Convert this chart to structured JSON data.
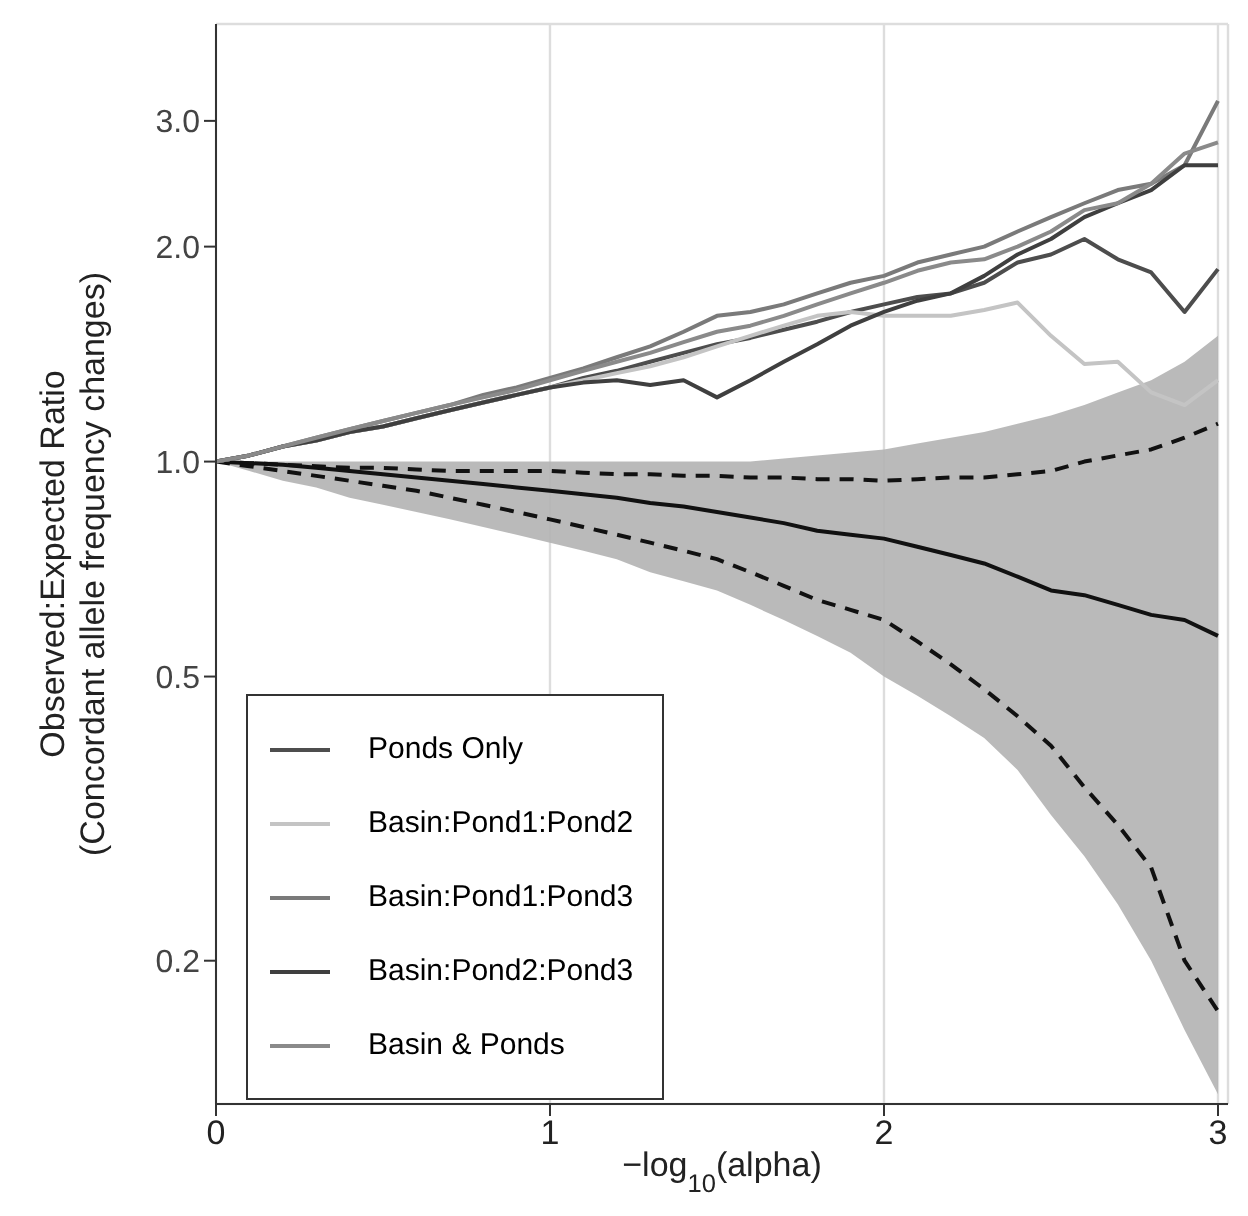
{
  "chart_data": {
    "type": "line",
    "xlabel": "−log$_{10}$(alpha)",
    "ylabel": "Observed:Expected Ratio\n(Concordant allele frequency changes)",
    "log": "y",
    "grid": true,
    "legend": "bottom left",
    "xlim": [
      0,
      3.03
    ],
    "xticks": [
      0,
      1,
      2,
      3
    ],
    "ylim": [
      0.126,
      4.1
    ],
    "yticks": [
      {
        "value": 0.2,
        "label": "0.2"
      },
      {
        "value": 0.5,
        "label": "0.5"
      },
      {
        "value": 1,
        "label": "1.0"
      },
      {
        "value": 2,
        "label": "2.0"
      },
      {
        "value": 3,
        "label": "3.0"
      }
    ],
    "x": [
      0,
      0.1,
      0.2,
      0.3,
      0.4,
      0.5,
      0.6,
      0.7,
      0.8,
      0.9,
      1.0,
      1.1,
      1.2,
      1.3,
      1.4,
      1.5,
      1.6,
      1.7,
      1.8,
      1.9,
      2.0,
      2.1,
      2.2,
      2.3,
      2.4,
      2.5,
      2.6,
      2.7,
      2.8,
      2.9,
      3.0
    ],
    "series": [
      {
        "color": "#111111",
        "values": [
          1.0,
          0.995,
          0.99,
          0.98,
          0.97,
          0.96,
          0.95,
          0.94,
          0.93,
          0.92,
          0.91,
          0.9,
          0.89,
          0.875,
          0.865,
          0.85,
          0.835,
          0.82,
          0.8,
          0.79,
          0.78,
          0.76,
          0.74,
          0.72,
          0.69,
          0.66,
          0.65,
          0.63,
          0.61,
          0.6,
          0.57
        ],
        "lower": [
          1.0,
          0.97,
          0.94,
          0.92,
          0.89,
          0.87,
          0.85,
          0.83,
          0.81,
          0.79,
          0.77,
          0.75,
          0.73,
          0.7,
          0.68,
          0.66,
          0.63,
          0.6,
          0.57,
          0.54,
          0.5,
          0.47,
          0.44,
          0.41,
          0.37,
          0.32,
          0.28,
          0.24,
          0.2,
          0.16,
          0.13
        ],
        "upper": [
          1.0,
          1.0,
          1.0,
          1.0,
          1.0,
          1.0,
          1.0,
          1.0,
          1.0,
          1.0,
          1.0,
          1.0,
          1.0,
          1.0,
          1.0,
          1.0,
          1.0,
          1.01,
          1.02,
          1.03,
          1.04,
          1.06,
          1.08,
          1.1,
          1.13,
          1.16,
          1.2,
          1.25,
          1.3,
          1.38,
          1.5
        ]
      },
      {
        "color": "#111111",
        "line_style": "dashed",
        "values": [
          1.0,
          0.995,
          0.99,
          0.985,
          0.98,
          0.98,
          0.975,
          0.97,
          0.97,
          0.97,
          0.97,
          0.965,
          0.96,
          0.96,
          0.955,
          0.955,
          0.95,
          0.95,
          0.945,
          0.945,
          0.94,
          0.945,
          0.95,
          0.95,
          0.96,
          0.97,
          1.0,
          1.02,
          1.04,
          1.08,
          1.13
        ]
      },
      {
        "color": "#111111",
        "line_style": "dashed",
        "values": [
          1.0,
          0.985,
          0.97,
          0.955,
          0.94,
          0.925,
          0.91,
          0.89,
          0.87,
          0.85,
          0.83,
          0.81,
          0.79,
          0.77,
          0.75,
          0.73,
          0.7,
          0.67,
          0.64,
          0.62,
          0.6,
          0.56,
          0.52,
          0.48,
          0.44,
          0.4,
          0.35,
          0.31,
          0.27,
          0.2,
          0.17
        ]
      },
      {
        "name": "Ponds Only",
        "color": "#4d4d4d",
        "values": [
          1.0,
          1.02,
          1.05,
          1.07,
          1.1,
          1.12,
          1.15,
          1.18,
          1.21,
          1.24,
          1.27,
          1.31,
          1.34,
          1.38,
          1.42,
          1.46,
          1.49,
          1.53,
          1.57,
          1.62,
          1.66,
          1.7,
          1.72,
          1.78,
          1.9,
          1.95,
          2.05,
          1.92,
          1.84,
          1.62,
          1.86
        ]
      },
      {
        "name": "Basin:Pond1:Pond2",
        "color": "#c4c4c4",
        "values": [
          1.0,
          1.02,
          1.05,
          1.07,
          1.1,
          1.12,
          1.15,
          1.18,
          1.21,
          1.24,
          1.27,
          1.3,
          1.33,
          1.36,
          1.4,
          1.45,
          1.5,
          1.55,
          1.6,
          1.62,
          1.6,
          1.6,
          1.6,
          1.63,
          1.67,
          1.5,
          1.37,
          1.38,
          1.25,
          1.2,
          1.3
        ]
      },
      {
        "name": "Basin:Pond1:Pond3",
        "color": "#7a7a7a",
        "values": [
          1.0,
          1.02,
          1.05,
          1.08,
          1.11,
          1.14,
          1.17,
          1.2,
          1.24,
          1.27,
          1.31,
          1.35,
          1.4,
          1.45,
          1.52,
          1.6,
          1.62,
          1.66,
          1.72,
          1.78,
          1.82,
          1.9,
          1.95,
          2.0,
          2.1,
          2.2,
          2.3,
          2.4,
          2.45,
          2.6,
          3.2
        ]
      },
      {
        "name": "Basin:Pond2:Pond3",
        "color": "#3f3f3f",
        "values": [
          1.0,
          1.02,
          1.05,
          1.07,
          1.1,
          1.12,
          1.15,
          1.18,
          1.21,
          1.24,
          1.27,
          1.29,
          1.3,
          1.28,
          1.3,
          1.23,
          1.3,
          1.38,
          1.46,
          1.55,
          1.62,
          1.68,
          1.72,
          1.82,
          1.95,
          2.05,
          2.2,
          2.3,
          2.4,
          2.6,
          2.6
        ]
      },
      {
        "name": "Basin & Ponds",
        "color": "#8a8a8a",
        "values": [
          1.0,
          1.02,
          1.05,
          1.08,
          1.11,
          1.14,
          1.17,
          1.2,
          1.23,
          1.26,
          1.3,
          1.34,
          1.38,
          1.42,
          1.47,
          1.52,
          1.55,
          1.6,
          1.66,
          1.72,
          1.78,
          1.85,
          1.9,
          1.92,
          2.0,
          2.1,
          2.25,
          2.3,
          2.45,
          2.7,
          2.8
        ]
      }
    ]
  }
}
